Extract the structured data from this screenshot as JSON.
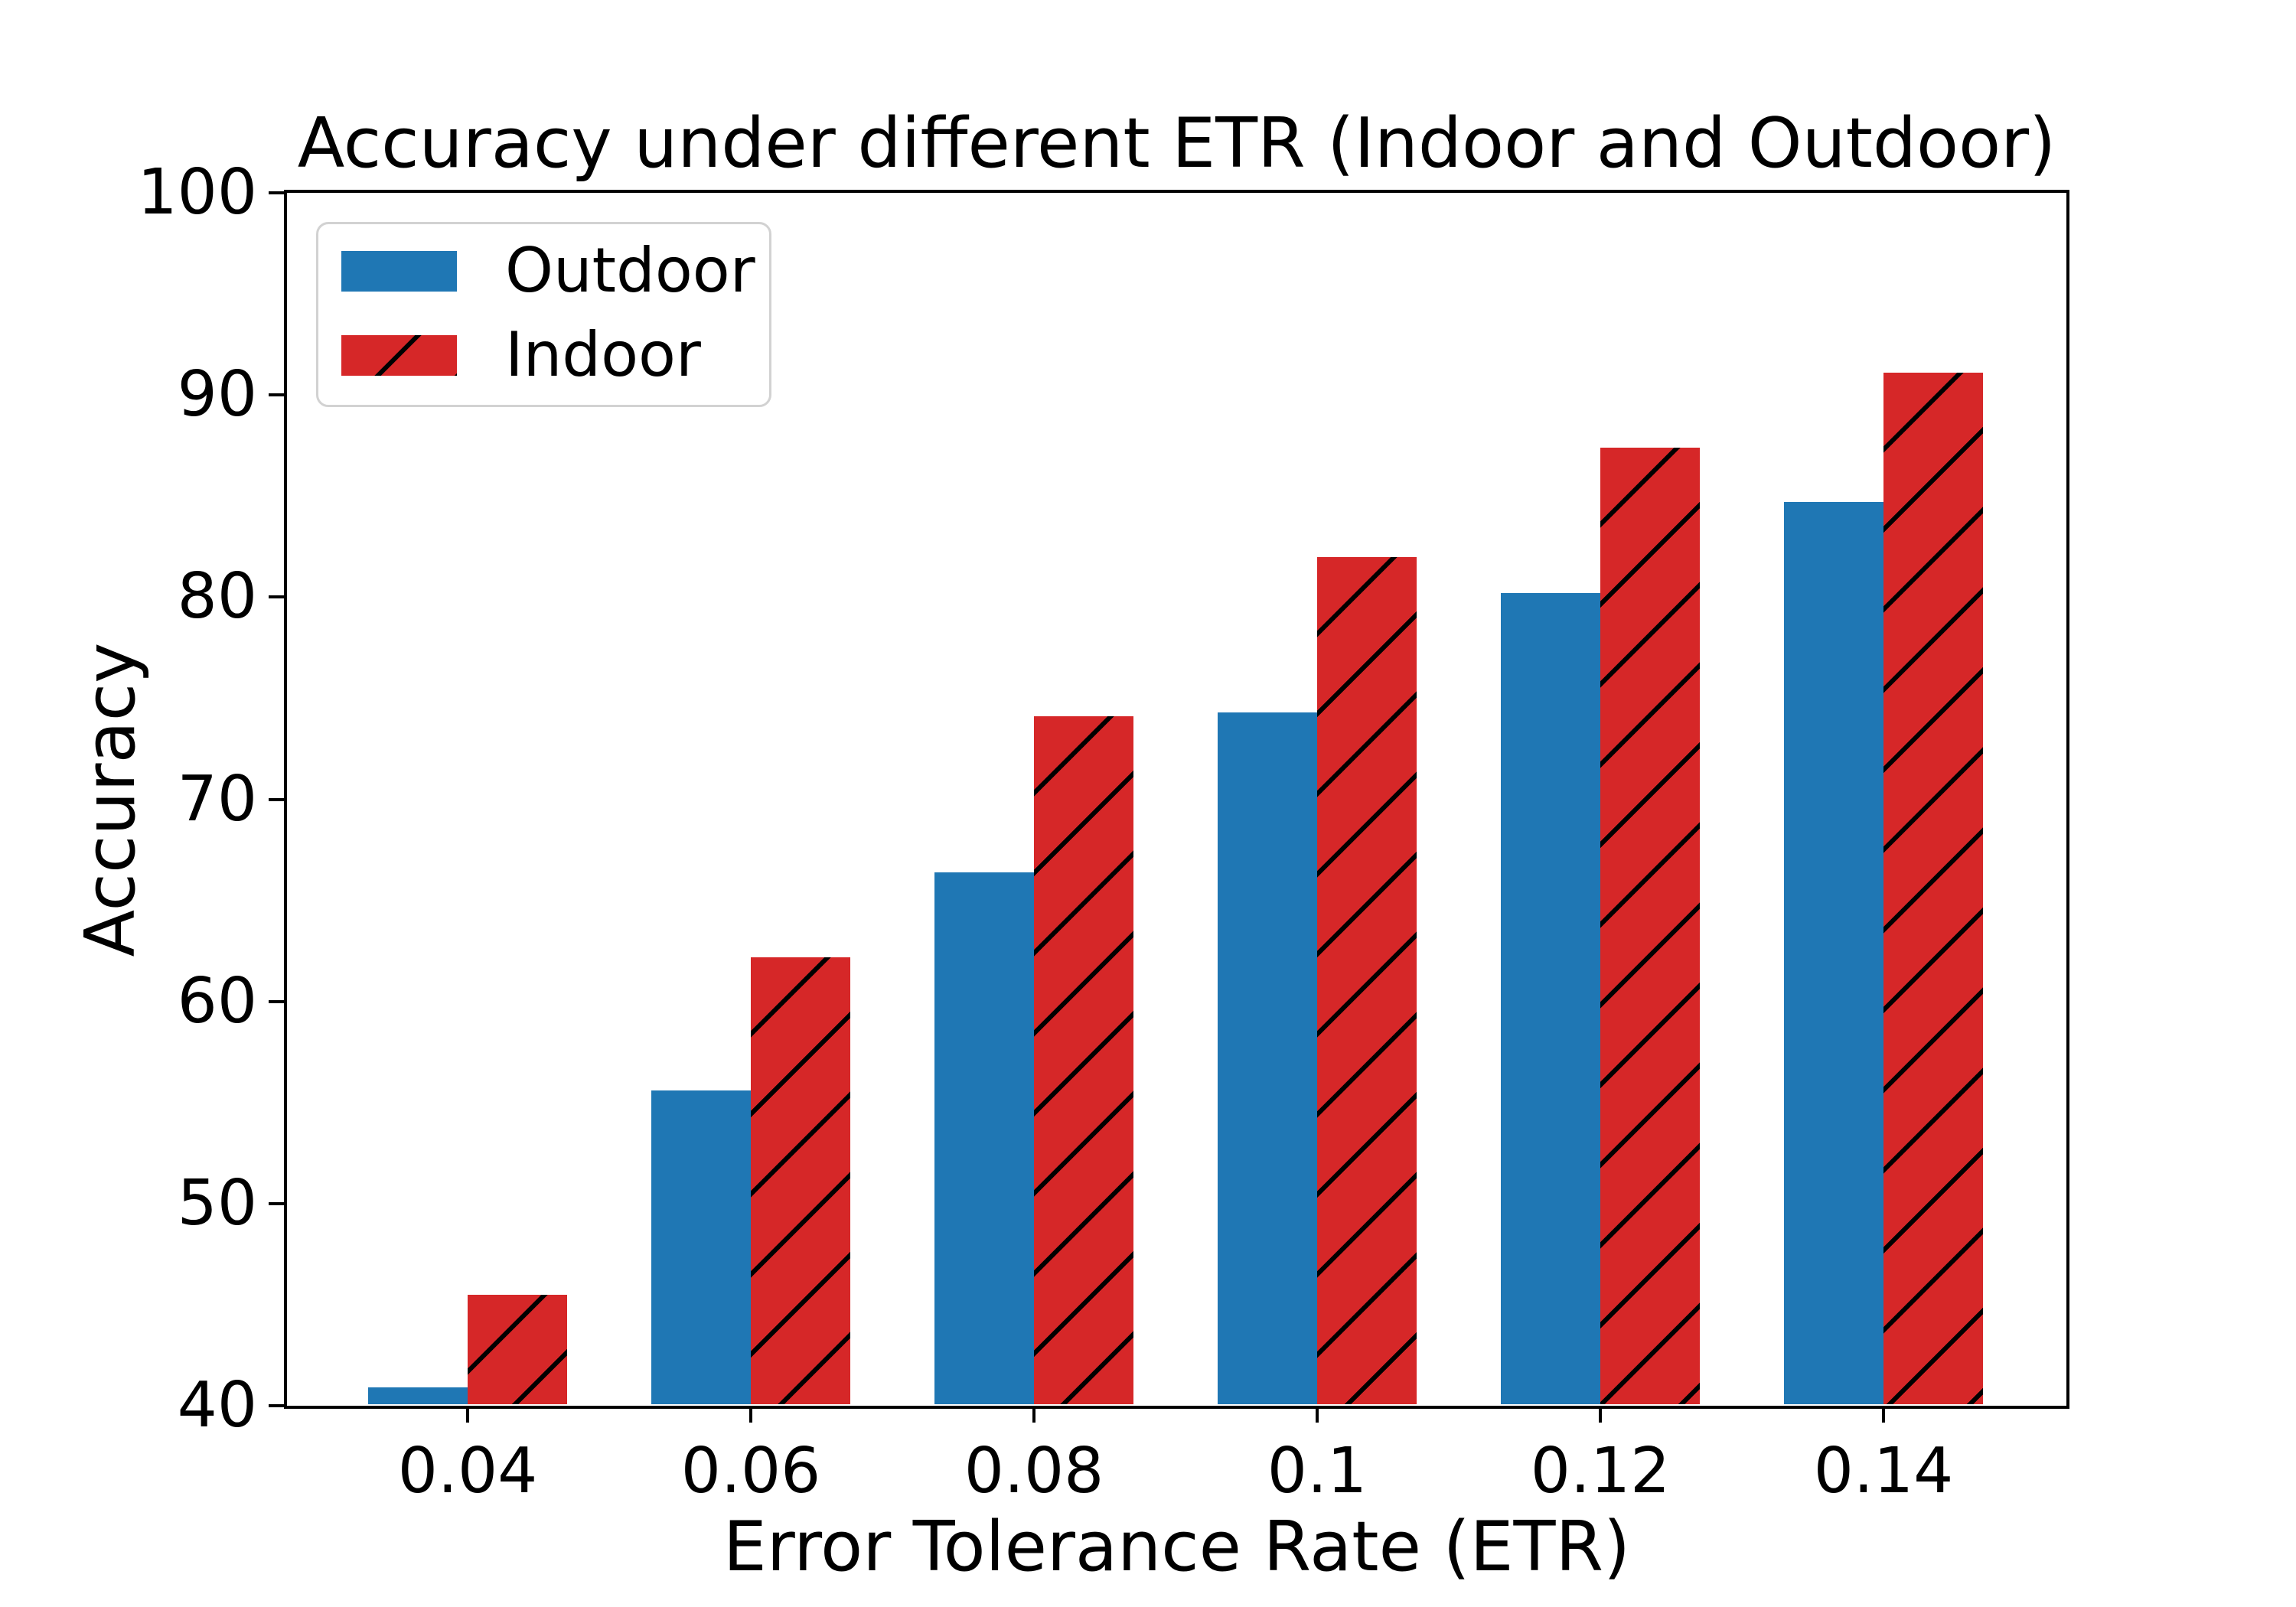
{
  "title": "Accuracy under different ETR (Indoor and Outdoor)",
  "axes": {
    "xlabel": "Error Tolerance Rate (ETR)",
    "ylabel": "Accuracy"
  },
  "legend": {
    "outdoor_label": "Outdoor",
    "indoor_label": "Indoor"
  },
  "colors": {
    "outdoor": "#1f77b4",
    "indoor": "#d62728",
    "hatch": "#000000",
    "axis": "#000000",
    "legend_border": "#d2d2d2",
    "background": "#ffffff"
  },
  "chart_data": {
    "type": "bar",
    "categories": [
      "0.04",
      "0.06",
      "0.08",
      "0.1",
      "0.12",
      "0.14"
    ],
    "series": [
      {
        "name": "Outdoor",
        "color": "#1f77b4",
        "hatch": false,
        "values": [
          40.9,
          55.6,
          66.4,
          74.3,
          80.2,
          84.7
        ]
      },
      {
        "name": "Indoor",
        "color": "#d62728",
        "hatch": true,
        "values": [
          45.5,
          62.2,
          74.1,
          82.0,
          87.4,
          91.1
        ]
      }
    ],
    "title": "Accuracy under different ETR (Indoor and Outdoor)",
    "xlabel": "Error Tolerance Rate (ETR)",
    "ylabel": "Accuracy",
    "ylim": [
      40,
      100
    ],
    "yticks": [
      40,
      50,
      60,
      70,
      80,
      90,
      100
    ],
    "grid": false,
    "legend_position": "upper left",
    "bar_style": {
      "grouped": true,
      "indoor_hatch_pattern": "/"
    }
  }
}
